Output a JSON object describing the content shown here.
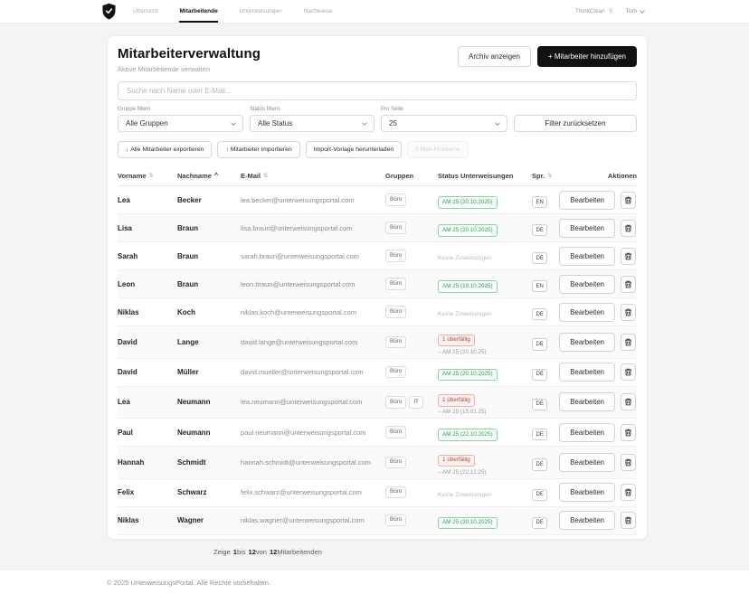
{
  "colors": {
    "accent": "#111111",
    "status_ok": "#2f9e60",
    "status_overdue": "#b9473c",
    "page_bg": "#f4f4f5"
  },
  "icons": {
    "sort_both": "⇅",
    "sort_asc": "^",
    "swap": "⇅",
    "download": "↓",
    "upload": "↑"
  },
  "header": {
    "nav": [
      {
        "label": "Übersicht"
      },
      {
        "label": "Mitarbeitende"
      },
      {
        "label": "Unterweisungen"
      },
      {
        "label": "Nachweise"
      }
    ],
    "org": "ThinkClean",
    "user": "Tom"
  },
  "page": {
    "title": "Mitarbeiterverwaltung",
    "subtitle": "Aktive Mitarbeitende verwalten",
    "archive_button": "Archiv anzeigen",
    "add_button": "+ Mitarbeiter hinzufügen"
  },
  "search": {
    "placeholder": "Suche nach Name oder E-Mail..."
  },
  "filters": {
    "group_label": "Gruppe filtern",
    "group_value": "Alle Gruppen",
    "status_label": "Status filtern",
    "status_value": "Alle Status",
    "per_page_label": "Pro Seite",
    "per_page_value": "25",
    "reset_button": "Filter zurücksetzen"
  },
  "toolbar": {
    "export_button": "Alle Mitarbeiter exportieren",
    "import_button": "Mitarbeiter importieren",
    "template_button": "Import-Vorlage herunterladen",
    "mail_problems_button": "0 Mail-Probleme"
  },
  "table": {
    "columns": [
      "Vorname",
      "Nachname",
      "E-Mail",
      "Gruppen",
      "Status Unterweisungen",
      "Spr.",
      "Aktionen"
    ],
    "edit_label": "Bearbeiten",
    "rows": [
      {
        "vorname": "Lea",
        "nachname": "Becker",
        "email": "lea.becker@unterweisungsportal.com",
        "groups": [
          "Büro"
        ],
        "status": {
          "type": "ok",
          "label": "AM 25 (20.10.2025)"
        },
        "lang": "EN"
      },
      {
        "vorname": "Lisa",
        "nachname": "Braun",
        "email": "lisa.braun@unterweisungsportal.com",
        "groups": [
          "Büro"
        ],
        "status": {
          "type": "ok",
          "label": "AM 25 (20.10.2025)"
        },
        "lang": "DE"
      },
      {
        "vorname": "Sarah",
        "nachname": "Braun",
        "email": "sarah.braun@unterweisungsportal.com",
        "groups": [
          "Büro"
        ],
        "status": {
          "type": "none",
          "label": "Keine Zuweisungen"
        },
        "lang": "DE"
      },
      {
        "vorname": "Leon",
        "nachname": "Braun",
        "email": "leon.braun@unterweisungsportal.com",
        "groups": [
          "Büro"
        ],
        "status": {
          "type": "ok",
          "label": "AM 25 (19.10.2025)"
        },
        "lang": "EN"
      },
      {
        "vorname": "Niklas",
        "nachname": "Koch",
        "email": "niklas.koch@unterweisungsportal.com",
        "groups": [
          "Büro"
        ],
        "status": {
          "type": "none",
          "label": "Keine Zuweisungen"
        },
        "lang": "DE"
      },
      {
        "vorname": "David",
        "nachname": "Lange",
        "email": "david.lange@unterweisungsportal.com",
        "groups": [
          "Büro"
        ],
        "status": {
          "type": "overdue",
          "label": "1 überfällig",
          "detail": "– AM 25 (20.10.25)"
        },
        "lang": "DE"
      },
      {
        "vorname": "David",
        "nachname": "Müller",
        "email": "david.mueller@unterweisungsportal.com",
        "groups": [
          "Büro"
        ],
        "status": {
          "type": "ok",
          "label": "AM 25 (20.10.2025)"
        },
        "lang": "DE"
      },
      {
        "vorname": "Lea",
        "nachname": "Neumann",
        "email": "lea.neumann@unterweisungsportal.com",
        "groups": [
          "Büro",
          "IT"
        ],
        "status": {
          "type": "overdue",
          "label": "1 überfällig",
          "detail": "– AM 25 (15.01.25)"
        },
        "lang": "DE"
      },
      {
        "vorname": "Paul",
        "nachname": "Neumann",
        "email": "paul.neumann@unterweisungsportal.com",
        "groups": [
          "Büro"
        ],
        "status": {
          "type": "ok",
          "label": "AM 25 (22.10.2025)"
        },
        "lang": "DE"
      },
      {
        "vorname": "Hannah",
        "nachname": "Schmidt",
        "email": "hannah.schmidt@unterweisungsportal.com",
        "groups": [
          "Büro"
        ],
        "status": {
          "type": "overdue",
          "label": "1 überfällig",
          "detail": "– AM 25 (22.12.25)"
        },
        "lang": "DE"
      },
      {
        "vorname": "Felix",
        "nachname": "Schwarz",
        "email": "felix.schwarz@unterweisungsportal.com",
        "groups": [
          "Büro"
        ],
        "status": {
          "type": "none",
          "label": "Keine Zuweisungen"
        },
        "lang": "DE"
      },
      {
        "vorname": "Niklas",
        "nachname": "Wagner",
        "email": "niklas.wagner@unterweisungsportal.com",
        "groups": [
          "Büro"
        ],
        "status": {
          "type": "ok",
          "label": "AM 25 (20.10.2025)"
        },
        "lang": "DE"
      }
    ]
  },
  "pagination": {
    "zeige": "Zeige",
    "from": "1",
    "bis": "bis",
    "to": "12",
    "von": "von",
    "total": "12",
    "label": "Mitarbeitenden"
  },
  "footer": {
    "copyright": "© 2025 UnterweisungsPortal. Alle Rechte vorbehalten."
  }
}
